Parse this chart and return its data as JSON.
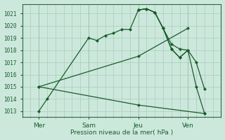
{
  "xlabel": "Pression niveau de la mer( hPa )",
  "background_color": "#cce8dc",
  "grid_color": "#aaccbb",
  "line_color": "#1a5c2a",
  "ylim": [
    1012.5,
    1021.8
  ],
  "xlim": [
    0,
    24
  ],
  "day_labels": [
    "Mer",
    "Sam",
    "Jeu",
    "Ven"
  ],
  "day_positions": [
    2,
    8,
    14,
    20
  ],
  "yticks": [
    1013,
    1014,
    1015,
    1016,
    1017,
    1018,
    1019,
    1020,
    1021
  ],
  "series": [
    {
      "x": [
        2,
        3,
        8,
        9,
        10,
        11,
        12,
        13,
        14,
        15,
        16,
        17,
        18,
        19,
        20
      ],
      "y": [
        1013.0,
        1014.0,
        1019.0,
        1018.8,
        1019.2,
        1019.4,
        1019.7,
        1019.7,
        1021.3,
        1021.4,
        1021.1,
        1019.8,
        1018.5,
        1018.1,
        1018.0
      ]
    },
    {
      "x": [
        2,
        14,
        20
      ],
      "y": [
        1015.0,
        1017.5,
        1019.8
      ]
    },
    {
      "x": [
        2,
        14,
        22
      ],
      "y": [
        1015.0,
        1013.5,
        1012.8
      ]
    },
    {
      "x": [
        14,
        15,
        16,
        17,
        18,
        19,
        20,
        21,
        22
      ],
      "y": [
        1021.3,
        1021.4,
        1021.1,
        1019.8,
        1018.1,
        1017.4,
        1018.0,
        1017.0,
        1014.8
      ]
    },
    {
      "x": [
        14,
        15,
        16,
        17,
        18,
        19,
        20,
        21,
        22
      ],
      "y": [
        1021.3,
        1021.4,
        1021.1,
        1019.8,
        1018.1,
        1017.4,
        1018.0,
        1015.0,
        1012.8
      ]
    }
  ]
}
